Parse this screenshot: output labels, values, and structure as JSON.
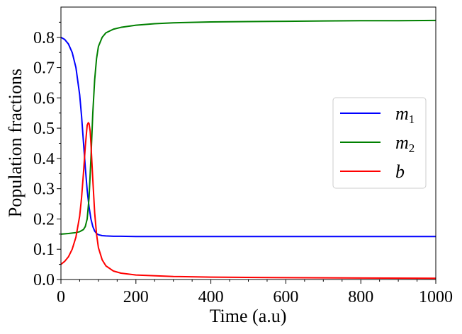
{
  "chart_data": {
    "type": "line",
    "title": "",
    "xlabel": "Time (a.u)",
    "ylabel": "Population fractions",
    "xlim": [
      0,
      1000
    ],
    "ylim": [
      0,
      0.9
    ],
    "xticks": [
      0,
      200,
      400,
      600,
      800,
      1000
    ],
    "yticks": [
      0.0,
      0.1,
      0.2,
      0.3,
      0.4,
      0.5,
      0.6,
      0.7,
      0.8
    ],
    "xtick_labels": [
      "0",
      "200",
      "400",
      "600",
      "800",
      "1000"
    ],
    "ytick_labels": [
      "0.0",
      "0.1",
      "0.2",
      "0.3",
      "0.4",
      "0.5",
      "0.6",
      "0.7",
      "0.8"
    ],
    "grid": false,
    "legend_position": "center-right",
    "series": [
      {
        "name": "m1",
        "legend_main": "m",
        "legend_sub": "1",
        "color": "#0000ff",
        "x": [
          0,
          10,
          20,
          30,
          40,
          50,
          55,
          60,
          65,
          70,
          75,
          80,
          85,
          90,
          95,
          100,
          110,
          120,
          140,
          160,
          200,
          300,
          400,
          600,
          800,
          1000
        ],
        "y": [
          0.8,
          0.793,
          0.778,
          0.75,
          0.7,
          0.61,
          0.54,
          0.455,
          0.37,
          0.295,
          0.24,
          0.2,
          0.175,
          0.16,
          0.152,
          0.148,
          0.145,
          0.144,
          0.143,
          0.143,
          0.142,
          0.142,
          0.142,
          0.142,
          0.142,
          0.142
        ]
      },
      {
        "name": "m2",
        "legend_main": "m",
        "legend_sub": "2",
        "color": "#008000",
        "x": [
          0,
          20,
          40,
          50,
          60,
          65,
          70,
          75,
          80,
          85,
          90,
          95,
          100,
          110,
          120,
          140,
          160,
          200,
          250,
          300,
          400,
          500,
          600,
          700,
          800,
          900,
          1000
        ],
        "y": [
          0.15,
          0.152,
          0.155,
          0.158,
          0.165,
          0.175,
          0.2,
          0.27,
          0.4,
          0.55,
          0.66,
          0.73,
          0.77,
          0.8,
          0.815,
          0.827,
          0.833,
          0.84,
          0.845,
          0.848,
          0.851,
          0.852,
          0.853,
          0.854,
          0.855,
          0.855,
          0.856
        ]
      },
      {
        "name": "b",
        "legend_main": "b",
        "legend_sub": "",
        "color": "#ff0000",
        "x": [
          0,
          10,
          20,
          30,
          40,
          50,
          55,
          60,
          65,
          70,
          73,
          75,
          78,
          80,
          85,
          90,
          95,
          100,
          110,
          120,
          140,
          160,
          200,
          300,
          400,
          600,
          800,
          1000
        ],
        "y": [
          0.05,
          0.06,
          0.075,
          0.1,
          0.14,
          0.21,
          0.27,
          0.35,
          0.44,
          0.51,
          0.518,
          0.515,
          0.49,
          0.45,
          0.33,
          0.22,
          0.15,
          0.105,
          0.065,
          0.045,
          0.028,
          0.021,
          0.015,
          0.01,
          0.008,
          0.006,
          0.005,
          0.004
        ]
      }
    ]
  }
}
